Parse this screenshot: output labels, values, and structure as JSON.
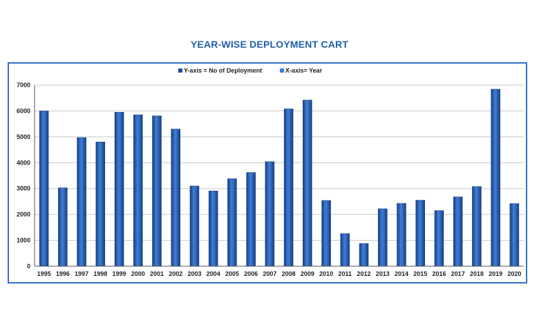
{
  "chart_data": {
    "type": "bar",
    "title": "YEAR-WISE DEPLOYMENT CART",
    "legend": [
      "Y-axis = No of Deployment",
      "X-axis= Year"
    ],
    "legend_position": "top-center",
    "categories": [
      "1995",
      "1996",
      "1997",
      "1998",
      "1999",
      "2000",
      "2001",
      "2002",
      "2003",
      "2004",
      "2005",
      "2006",
      "2007",
      "2008",
      "2009",
      "2010",
      "2011",
      "2012",
      "2013",
      "2014",
      "2015",
      "2016",
      "2017",
      "2018",
      "2019",
      "2020"
    ],
    "values": [
      6000,
      3030,
      4970,
      4800,
      5950,
      5850,
      5810,
      5300,
      3100,
      2910,
      3380,
      3620,
      4040,
      6080,
      6420,
      2540,
      1260,
      880,
      2220,
      2430,
      2550,
      2150,
      2680,
      3080,
      6840,
      2420
    ],
    "ylim": [
      0,
      7000
    ],
    "yticks": [
      0,
      1000,
      2000,
      3000,
      4000,
      5000,
      6000,
      7000
    ],
    "grid": true,
    "colors": {
      "bar": "#1d4f9e",
      "bar_light": "#3f7fd6",
      "frame": "#2f72c0",
      "title": "#1f5fa8"
    }
  }
}
